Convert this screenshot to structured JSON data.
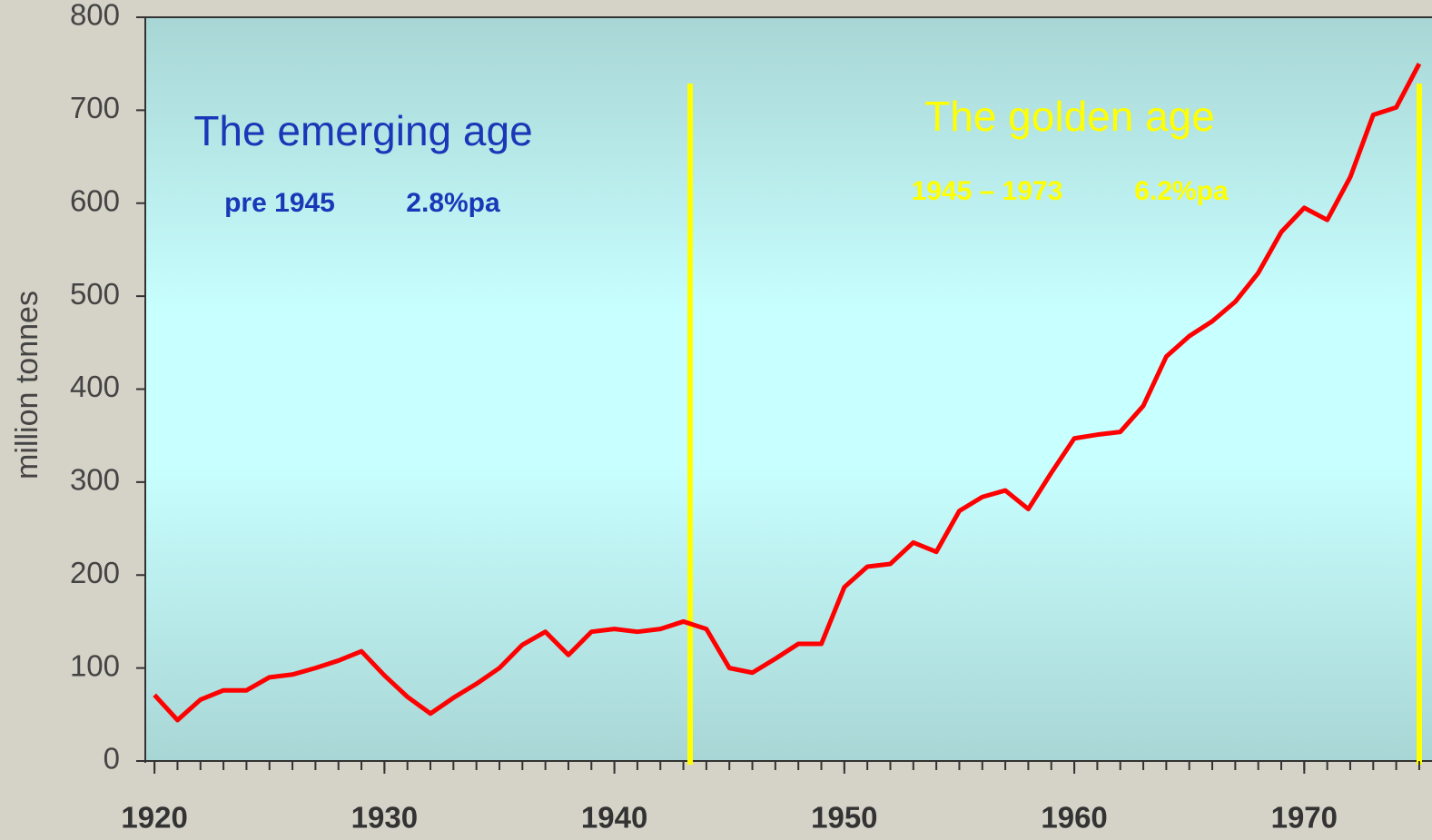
{
  "chart_data": {
    "type": "line",
    "y_label": "million tonnes",
    "x": [
      1920,
      1921,
      1922,
      1923,
      1924,
      1925,
      1926,
      1927,
      1928,
      1929,
      1930,
      1931,
      1932,
      1933,
      1934,
      1935,
      1936,
      1937,
      1938,
      1939,
      1940,
      1941,
      1942,
      1943,
      1944,
      1945,
      1946,
      1947,
      1948,
      1949,
      1950,
      1951,
      1952,
      1953,
      1954,
      1955,
      1956,
      1957,
      1958,
      1959,
      1960,
      1961,
      1962,
      1963,
      1964,
      1965,
      1966,
      1967,
      1968,
      1969,
      1970,
      1971,
      1972,
      1973,
      1974,
      1975
    ],
    "series": [
      {
        "color": "#ff0000",
        "values": [
          71,
          44,
          66,
          76,
          76,
          90,
          93,
          100,
          108,
          118,
          92,
          69,
          51,
          68,
          83,
          100,
          125,
          139,
          114,
          139,
          142,
          139,
          142,
          150,
          142,
          100,
          95,
          110,
          126,
          126,
          187,
          209,
          212,
          235,
          225,
          269,
          284,
          291,
          271,
          310,
          347,
          351,
          354,
          382,
          435,
          457,
          473,
          494,
          525,
          569,
          595,
          582,
          628,
          695,
          703,
          750
        ]
      }
    ],
    "xlim": [
      1919.6,
      1975.2
    ],
    "xticks": [
      1920,
      1930,
      1940,
      1950,
      1960,
      1970
    ],
    "ylim": [
      0,
      800
    ],
    "yticks": [
      0,
      100,
      200,
      300,
      400,
      500,
      600,
      700,
      800
    ],
    "annotations": [
      {
        "text": "The emerging age",
        "color": "#1838b8"
      },
      {
        "text": "pre 1945",
        "color": "#1838b8"
      },
      {
        "text": "2.8%pa",
        "color": "#1838b8"
      },
      {
        "text": "The golden age",
        "color": "#ffff00"
      },
      {
        "text": "1945 – 1973",
        "color": "#ffff00"
      },
      {
        "text": "6.2%pa",
        "color": "#ffff00"
      }
    ]
  }
}
